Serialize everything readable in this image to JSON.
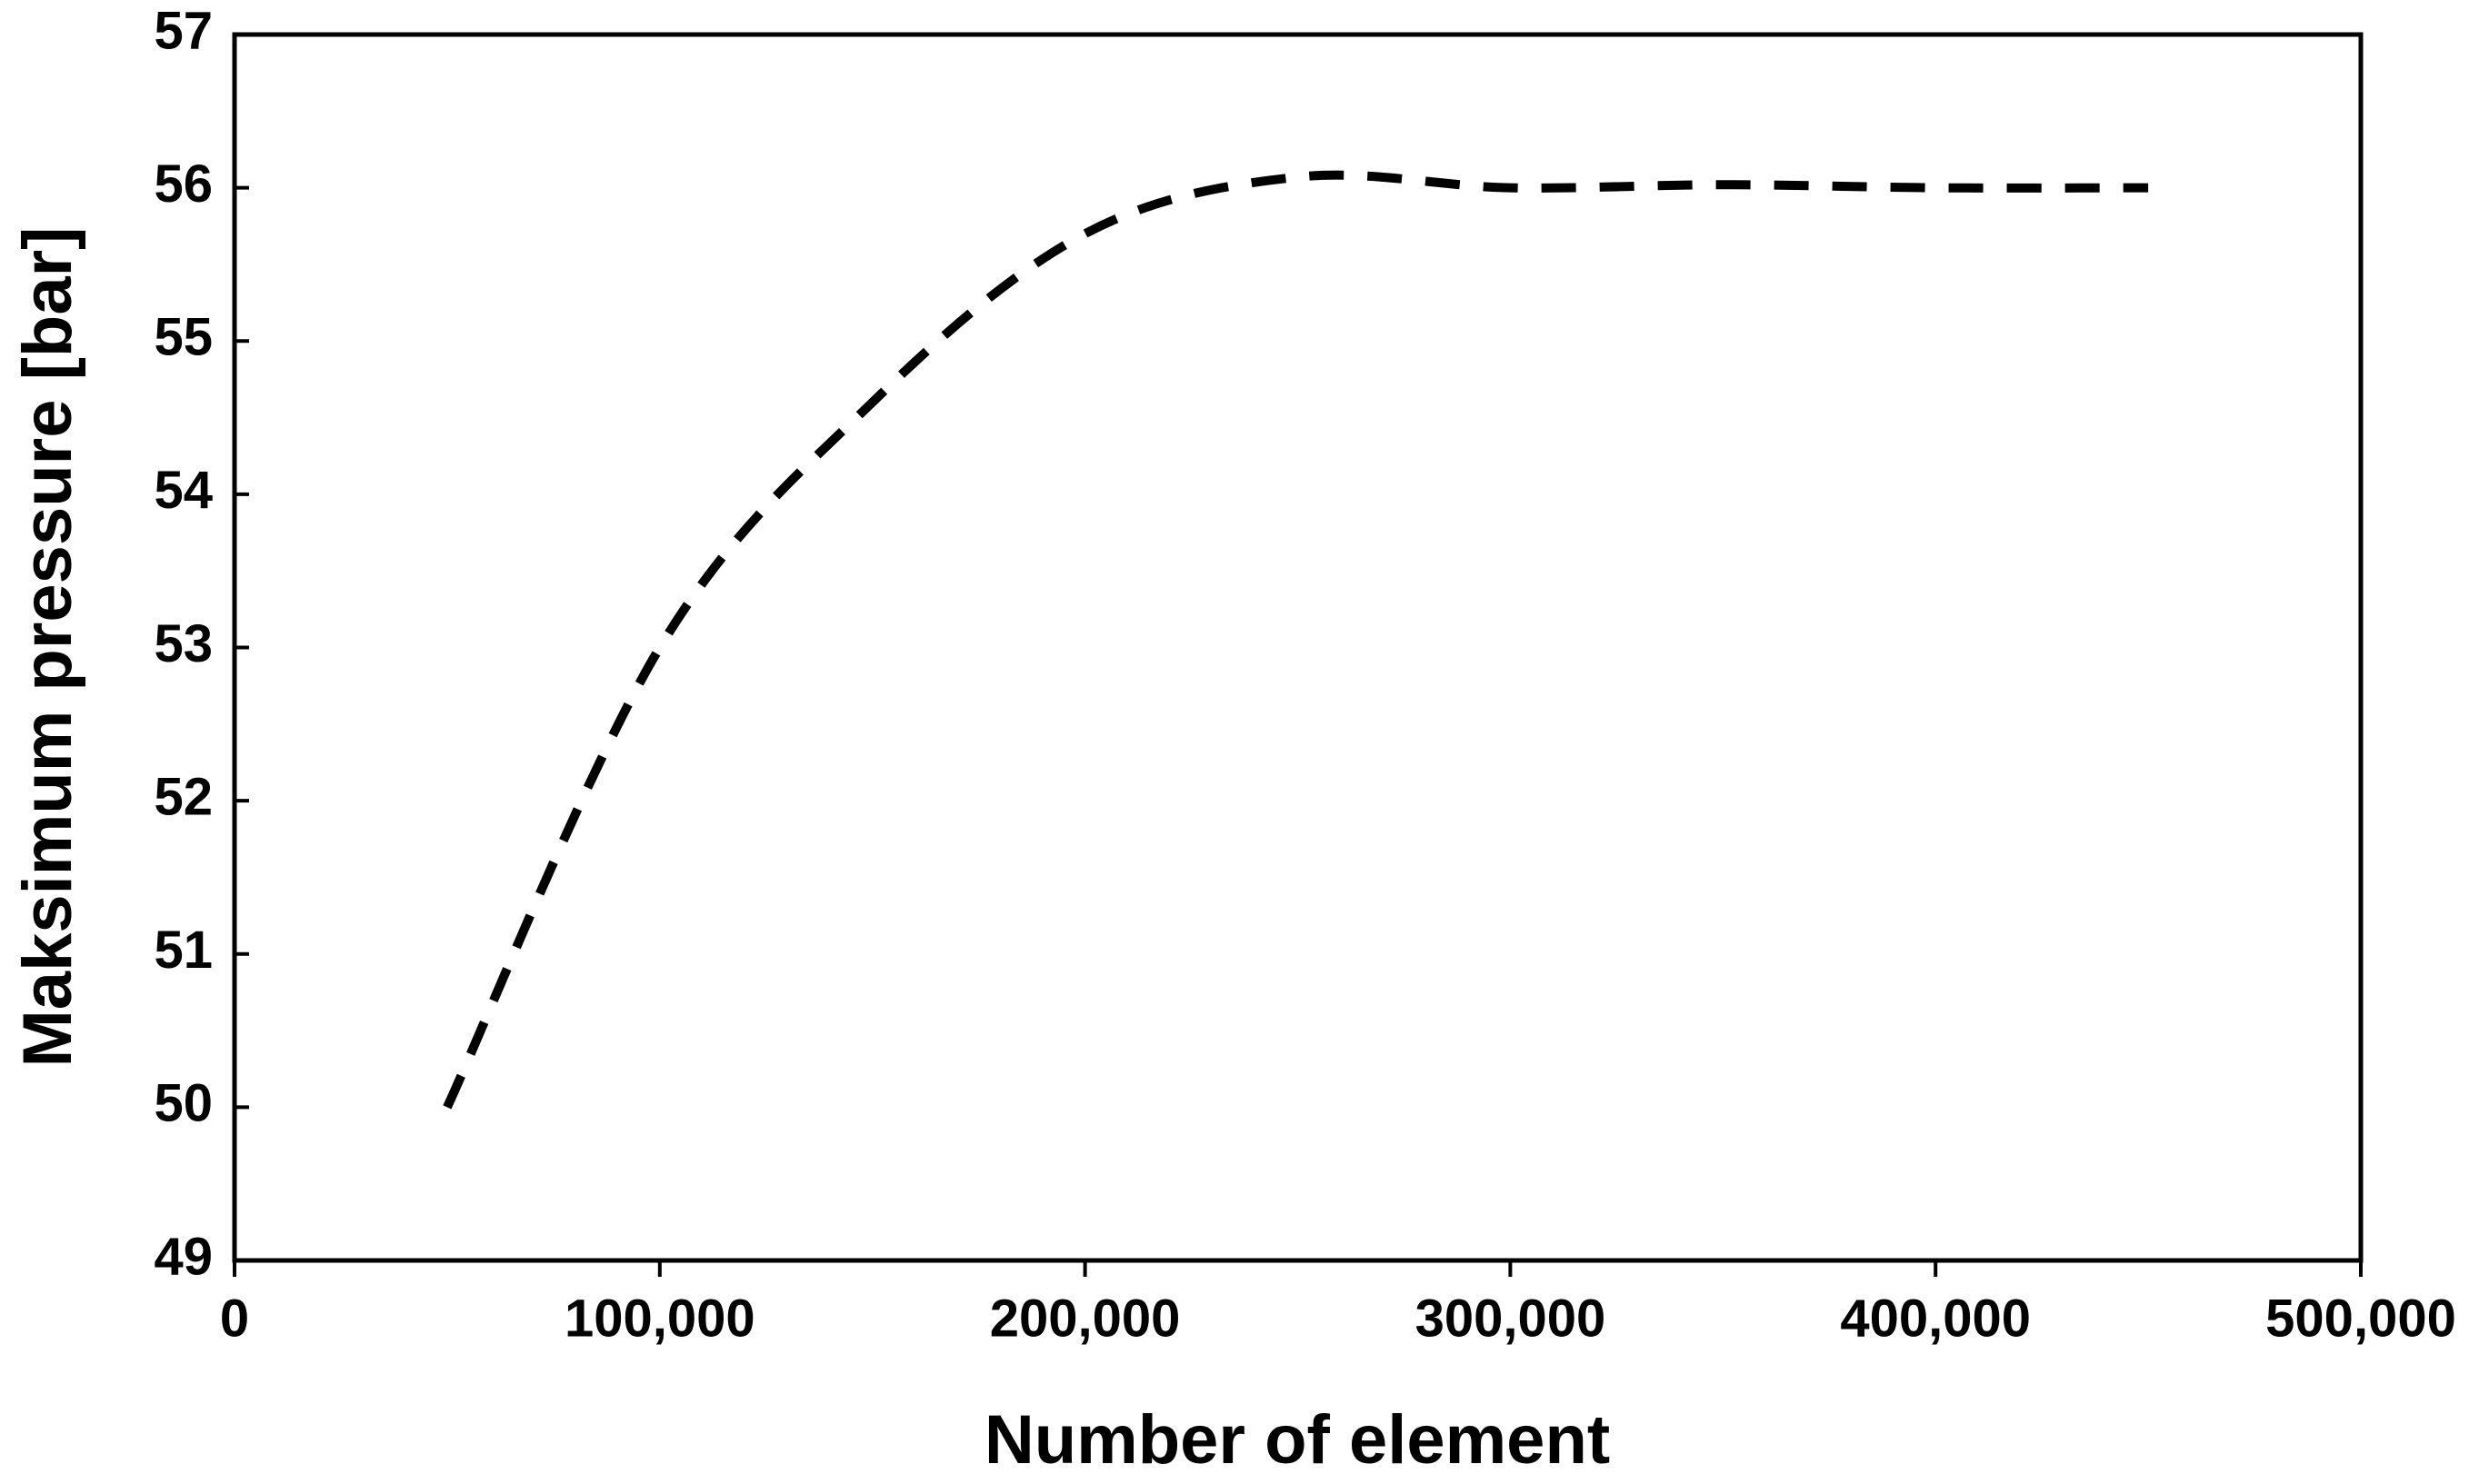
{
  "chart_data": {
    "type": "line",
    "x_label": "Number of element",
    "y_label": "Maksimum pressure [bar]",
    "x": [
      50000,
      100000,
      150000,
      200000,
      250000,
      300000,
      350000,
      400000,
      450000
    ],
    "series": [
      {
        "color": "#000000",
        "values": [
          50,
          53,
          54.6,
          55.7,
          56.07,
          56,
          56.02,
          56,
          56
        ]
      }
    ],
    "xlim": [
      0,
      500000
    ],
    "xticks": [
      0,
      {
        "value": 100000,
        "label": "100,000"
      },
      {
        "value": 200000,
        "label": "200,000"
      },
      {
        "value": 300000,
        "label": "300,000"
      },
      {
        "value": 400000,
        "label": "400,000"
      },
      {
        "value": 500000,
        "label": "500,000"
      }
    ],
    "ylim": [
      49,
      57
    ],
    "yticks": [
      49,
      50,
      51,
      52,
      53,
      54,
      55,
      56,
      57
    ],
    "dashed": true,
    "smooth": true,
    "grid": false
  }
}
